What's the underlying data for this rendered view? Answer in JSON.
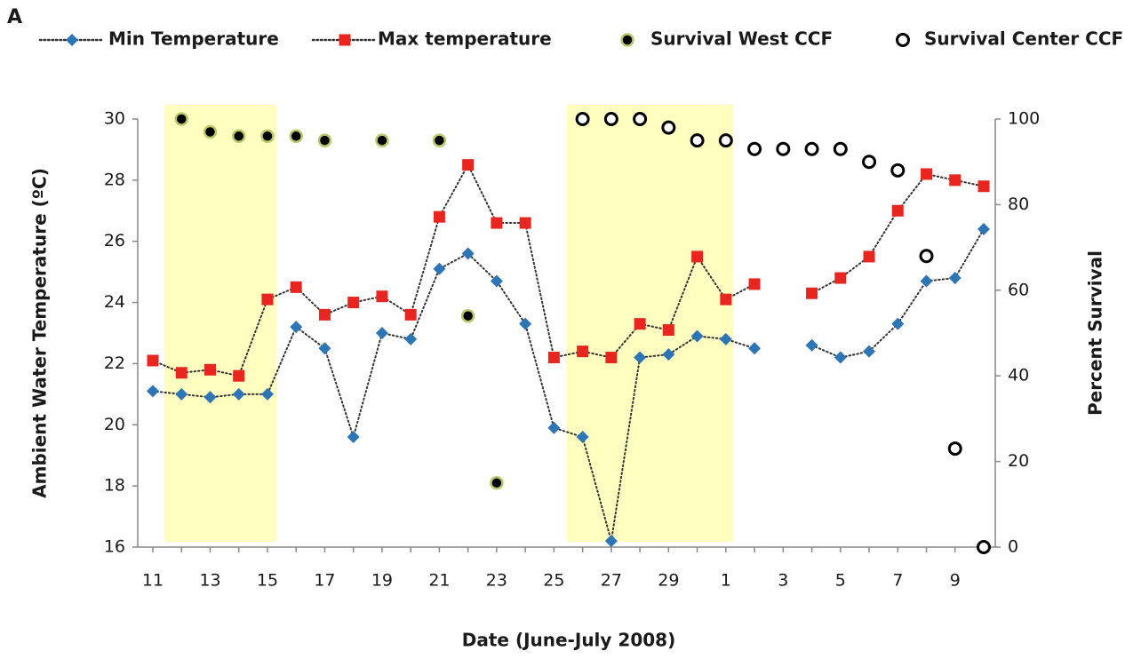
{
  "chart_data": {
    "type": "line",
    "panel_label": "A",
    "x_label": "Date (June-July 2008)",
    "y_label": "Ambient  Water Temperature  (ºC)",
    "y2_label": "Percent  Survival",
    "categories": [
      "11",
      null,
      "13",
      null,
      "15",
      null,
      "17",
      null,
      "19",
      null,
      "21",
      null,
      "23",
      null,
      "25",
      null,
      "27",
      null,
      "29",
      null,
      "1",
      null,
      "3",
      null,
      "5",
      null,
      "7",
      null,
      "9",
      null
    ],
    "ylim": [
      16,
      30
    ],
    "yticks": [
      16,
      18,
      20,
      22,
      24,
      26,
      28,
      30
    ],
    "y2lim": [
      0,
      100
    ],
    "y2ticks": [
      0,
      20,
      40,
      60,
      80,
      100
    ],
    "series": [
      {
        "name": "Min Temperature",
        "color": "#2e75b6",
        "marker": "diamond",
        "line": "dotted",
        "values": [
          21.1,
          21.0,
          20.9,
          21.0,
          21.0,
          23.2,
          22.5,
          19.6,
          23.0,
          22.8,
          25.1,
          25.6,
          24.7,
          23.3,
          19.9,
          19.6,
          16.2,
          22.2,
          22.3,
          22.9,
          22.8,
          22.5,
          null,
          22.6,
          22.2,
          22.4,
          23.3,
          24.7,
          24.8,
          26.4
        ]
      },
      {
        "name": "Max temperature",
        "color": "#e8251f",
        "marker": "square",
        "line": "dotted",
        "values": [
          22.1,
          21.7,
          21.8,
          21.6,
          24.1,
          24.5,
          23.6,
          24.0,
          24.2,
          23.6,
          26.8,
          28.5,
          26.6,
          26.6,
          22.2,
          22.4,
          22.2,
          23.3,
          23.1,
          25.5,
          24.1,
          24.6,
          null,
          24.3,
          24.8,
          25.5,
          27.0,
          28.2,
          28.0,
          27.8
        ]
      },
      {
        "name": "Survival West CCF",
        "color": "#000000",
        "marker": "filled-circle",
        "axis": "y2",
        "values": [
          null,
          100,
          97,
          96,
          96,
          96,
          95,
          null,
          95,
          null,
          95,
          54,
          15,
          null,
          null,
          null,
          null,
          null,
          null,
          null,
          null,
          null,
          null,
          null,
          null,
          null,
          null,
          null,
          null,
          null
        ]
      },
      {
        "name": "Survival Center CCF",
        "color": "#000000",
        "marker": "open-circle",
        "axis": "y2",
        "values": [
          null,
          null,
          null,
          null,
          null,
          null,
          null,
          null,
          null,
          null,
          null,
          null,
          null,
          null,
          null,
          100,
          100,
          100,
          98,
          95,
          95,
          93,
          93,
          93,
          93,
          90,
          88,
          68,
          23,
          0
        ]
      }
    ]
  }
}
